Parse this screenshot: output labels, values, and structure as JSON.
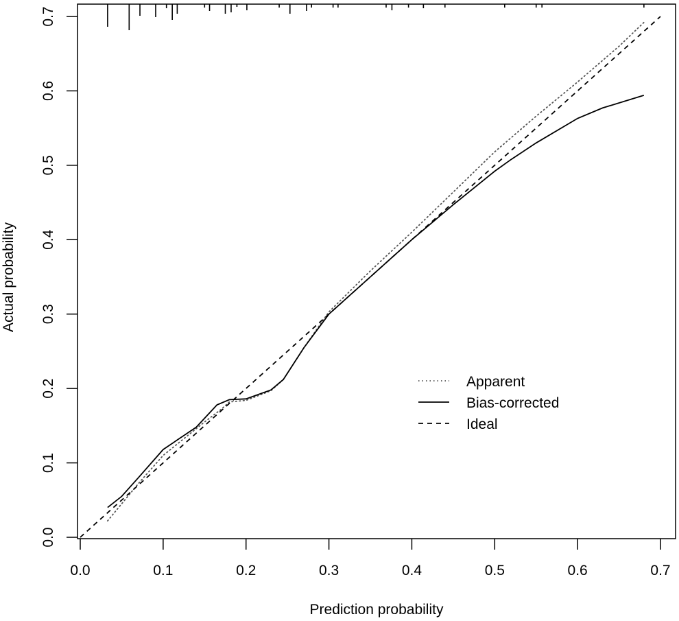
{
  "chart_data": {
    "type": "line",
    "title": "",
    "xlabel": "Prediction probability",
    "ylabel": "Actual probability",
    "xlim": [
      0,
      0.7
    ],
    "ylim": [
      0,
      0.7
    ],
    "xticks": [
      "0.0",
      "0.1",
      "0.2",
      "0.3",
      "0.4",
      "0.5",
      "0.6",
      "0.7"
    ],
    "yticks": [
      "0.0",
      "0.1",
      "0.2",
      "0.3",
      "0.4",
      "0.5",
      "0.6",
      "0.7"
    ],
    "grid": false,
    "legend_position": "center-right",
    "series": [
      {
        "name": "Apparent",
        "style": "dotted",
        "color": "#555555",
        "x": [
          0.033,
          0.05,
          0.07,
          0.1,
          0.12,
          0.15,
          0.17,
          0.18,
          0.2,
          0.23,
          0.245,
          0.27,
          0.3,
          0.35,
          0.4,
          0.45,
          0.5,
          0.55,
          0.6,
          0.65,
          0.68
        ],
        "y": [
          0.022,
          0.045,
          0.072,
          0.11,
          0.128,
          0.155,
          0.172,
          0.182,
          0.184,
          0.197,
          0.212,
          0.255,
          0.303,
          0.358,
          0.41,
          0.464,
          0.518,
          0.566,
          0.612,
          0.66,
          0.692
        ]
      },
      {
        "name": "Bias-corrected",
        "style": "solid",
        "color": "#000000",
        "x": [
          0.033,
          0.05,
          0.07,
          0.1,
          0.12,
          0.14,
          0.165,
          0.18,
          0.2,
          0.23,
          0.245,
          0.27,
          0.3,
          0.35,
          0.4,
          0.45,
          0.5,
          0.52,
          0.55,
          0.6,
          0.63,
          0.68
        ],
        "y": [
          0.04,
          0.055,
          0.08,
          0.118,
          0.133,
          0.148,
          0.178,
          0.185,
          0.186,
          0.198,
          0.212,
          0.255,
          0.3,
          0.35,
          0.4,
          0.447,
          0.492,
          0.508,
          0.53,
          0.563,
          0.577,
          0.594
        ]
      },
      {
        "name": "Ideal",
        "style": "dashed",
        "color": "#000000",
        "x": [
          0,
          0.7
        ],
        "y": [
          0,
          0.7
        ]
      }
    ],
    "rug": {
      "x": [
        0.033,
        0.059,
        0.072,
        0.091,
        0.104,
        0.111,
        0.117,
        0.15,
        0.156,
        0.175,
        0.182,
        0.189,
        0.201,
        0.24,
        0.253,
        0.273,
        0.279,
        0.305,
        0.311,
        0.369,
        0.376,
        0.396,
        0.414,
        0.44,
        0.512,
        0.55,
        0.557,
        0.68
      ],
      "relative_frequency": [
        6.6,
        7.6,
        3.4,
        3.8,
        1.2,
        4.6,
        2.8,
        1,
        2,
        2.8,
        2.4,
        0.8,
        1.8,
        1,
        2.8,
        2,
        1,
        1,
        1,
        1,
        1.8,
        1,
        1.2,
        1,
        1,
        1,
        1,
        1
      ]
    }
  }
}
